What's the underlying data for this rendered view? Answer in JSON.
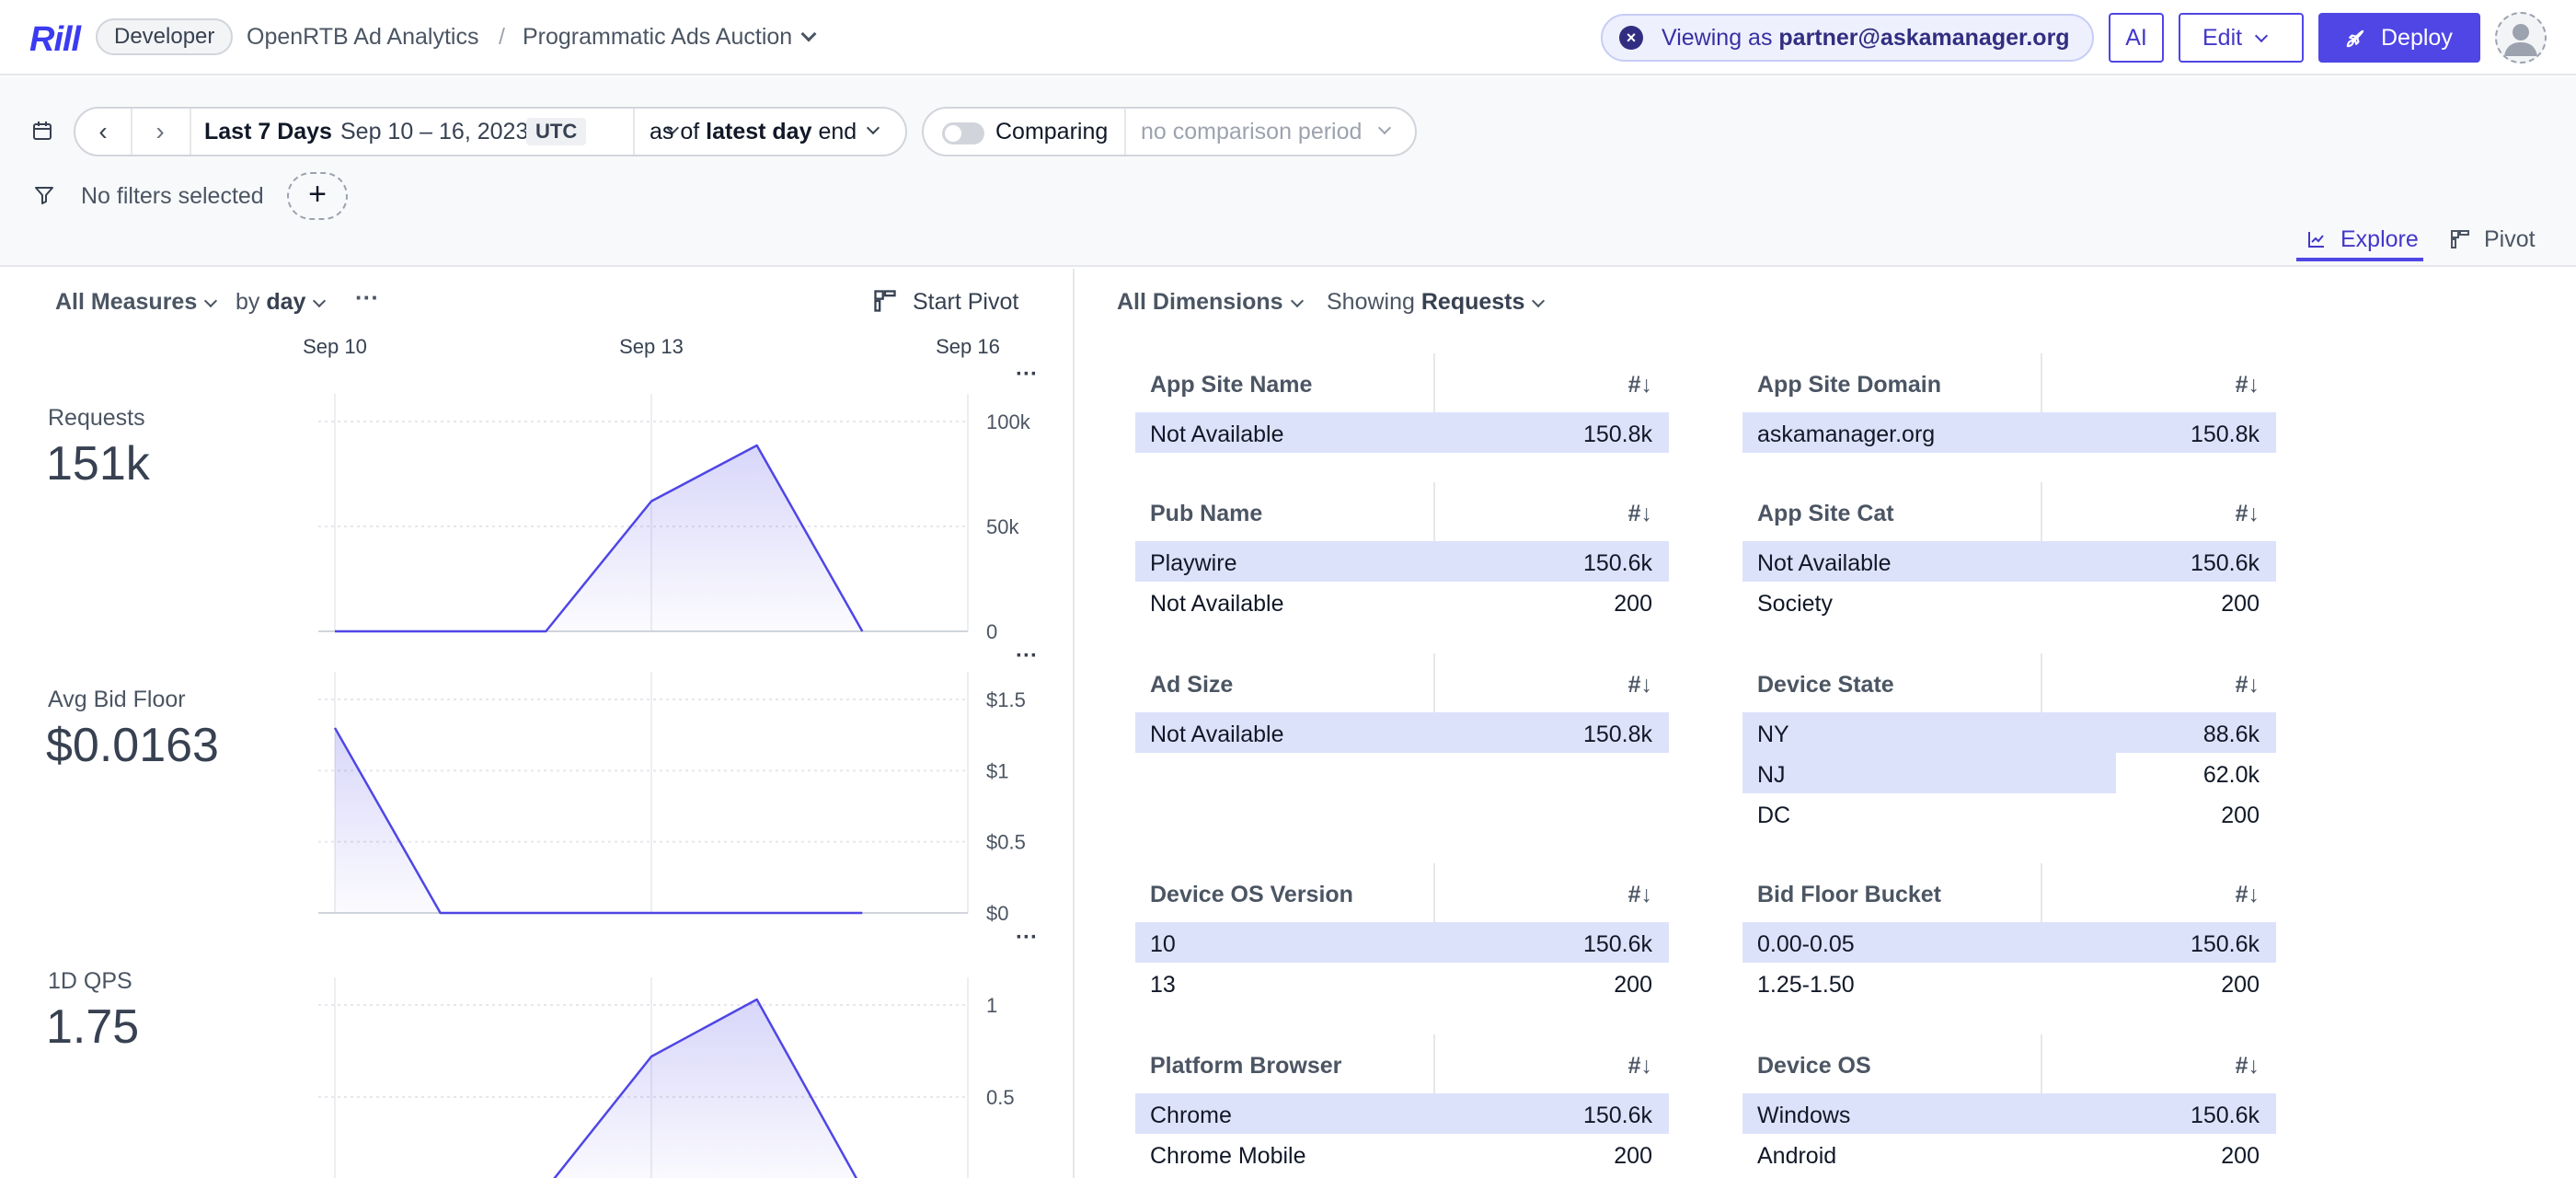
{
  "app": {
    "logo": "Rill",
    "env_badge": "Developer"
  },
  "breadcrumb": {
    "project": "OpenRTB Ad Analytics",
    "separator": "/",
    "dashboard": "Programmatic Ads Auction"
  },
  "viewing": {
    "prefix": "Viewing as",
    "user": "partner@askamanager.org"
  },
  "header_buttons": {
    "ai": "AI",
    "edit": "Edit",
    "deploy": "Deploy"
  },
  "time": {
    "range_label": "Last 7 Days",
    "range_dates": "Sep 10 – 16, 2023",
    "timezone": "UTC",
    "as_of_prefix": "as of",
    "as_of_bold": "latest day",
    "as_of_suffix": "end",
    "comparing_label": "Comparing",
    "comparison_placeholder": "no comparison period"
  },
  "filters": {
    "empty_text": "No filters selected",
    "add_symbol": "+"
  },
  "tabs": [
    {
      "label": "Explore",
      "icon": "line-chart-icon",
      "active": true
    },
    {
      "label": "Pivot",
      "icon": "pivot-icon",
      "active": false
    }
  ],
  "left_controls": {
    "measures": "All Measures",
    "by": "by",
    "grain": "day",
    "more": "···",
    "start_pivot": "Start Pivot"
  },
  "x_axis_ticks": [
    "Sep 10",
    "Sep 13",
    "Sep 16"
  ],
  "measures": [
    {
      "label": "Requests",
      "value": "151k",
      "y_ticks": [
        "100k",
        "50k",
        "0"
      ]
    },
    {
      "label": "Avg Bid Floor",
      "value": "$0.0163",
      "y_ticks": [
        "$1.5",
        "$1",
        "$0.5",
        "$0"
      ]
    },
    {
      "label": "1D QPS",
      "value": "1.75",
      "y_ticks": [
        "1",
        "0.5"
      ]
    }
  ],
  "chart_data": [
    {
      "type": "area",
      "title": "Requests",
      "x": [
        "Sep 10",
        "Sep 11",
        "Sep 12",
        "Sep 13",
        "Sep 14",
        "Sep 15",
        "Sep 16"
      ],
      "y": [
        0,
        0,
        0,
        62000,
        88600,
        0,
        null
      ],
      "ylim": [
        0,
        100000
      ],
      "y_ticks": [
        0,
        50000,
        100000
      ],
      "color": "#4f46e5"
    },
    {
      "type": "area",
      "title": "Avg Bid Floor",
      "x": [
        "Sep 10",
        "Sep 11",
        "Sep 12",
        "Sep 13",
        "Sep 14",
        "Sep 15",
        "Sep 16"
      ],
      "y": [
        1.3,
        0,
        0,
        0,
        0,
        0,
        null
      ],
      "ylim": [
        0,
        1.5
      ],
      "y_ticks": [
        0,
        0.5,
        1,
        1.5
      ],
      "color": "#4f46e5"
    },
    {
      "type": "area",
      "title": "1D QPS",
      "x": [
        "Sep 10",
        "Sep 11",
        "Sep 12",
        "Sep 13",
        "Sep 14",
        "Sep 15",
        "Sep 16"
      ],
      "y": [
        0,
        0,
        0,
        0.72,
        1.03,
        0,
        null
      ],
      "ylim": [
        0,
        1.0
      ],
      "y_ticks": [
        0.5,
        1
      ],
      "color": "#4f46e5"
    }
  ],
  "right_controls": {
    "dimensions": "All Dimensions",
    "showing_prefix": "Showing",
    "showing_measure": "Requests"
  },
  "leaderboards": [
    {
      "name": "App Site Name",
      "sort": "#↓",
      "rows": [
        {
          "label": "Not Available",
          "value": "150.8k",
          "frac": 1.0
        }
      ]
    },
    {
      "name": "App Site Domain",
      "sort": "#↓",
      "rows": [
        {
          "label": "askamanager.org",
          "value": "150.8k",
          "frac": 1.0
        }
      ]
    },
    {
      "name": "Pub Name",
      "sort": "#↓",
      "rows": [
        {
          "label": "Playwire",
          "value": "150.6k",
          "frac": 1.0
        },
        {
          "label": "Not Available",
          "value": "200",
          "frac": 0.0
        }
      ]
    },
    {
      "name": "App Site Cat",
      "sort": "#↓",
      "rows": [
        {
          "label": "Not Available",
          "value": "150.6k",
          "frac": 1.0
        },
        {
          "label": "Society",
          "value": "200",
          "frac": 0.0
        }
      ]
    },
    {
      "name": "Ad Size",
      "sort": "#↓",
      "rows": [
        {
          "label": "Not Available",
          "value": "150.8k",
          "frac": 1.0
        }
      ]
    },
    {
      "name": "Device State",
      "sort": "#↓",
      "rows": [
        {
          "label": "NY",
          "value": "88.6k",
          "frac": 1.0
        },
        {
          "label": "NJ",
          "value": "62.0k",
          "frac": 0.7
        },
        {
          "label": "DC",
          "value": "200",
          "frac": 0.0
        }
      ]
    },
    {
      "name": "Device OS Version",
      "sort": "#↓",
      "rows": [
        {
          "label": "10",
          "value": "150.6k",
          "frac": 1.0
        },
        {
          "label": "13",
          "value": "200",
          "frac": 0.0
        }
      ]
    },
    {
      "name": "Bid Floor Bucket",
      "sort": "#↓",
      "rows": [
        {
          "label": "0.00-0.05",
          "value": "150.6k",
          "frac": 1.0
        },
        {
          "label": "1.25-1.50",
          "value": "200",
          "frac": 0.0
        }
      ]
    },
    {
      "name": "Platform Browser",
      "sort": "#↓",
      "rows": [
        {
          "label": "Chrome",
          "value": "150.6k",
          "frac": 1.0
        },
        {
          "label": "Chrome Mobile",
          "value": "200",
          "frac": 0.0
        }
      ]
    },
    {
      "name": "Device OS",
      "sort": "#↓",
      "rows": [
        {
          "label": "Windows",
          "value": "150.6k",
          "frac": 1.0
        },
        {
          "label": "Android",
          "value": "200",
          "frac": 0.0
        }
      ]
    }
  ]
}
